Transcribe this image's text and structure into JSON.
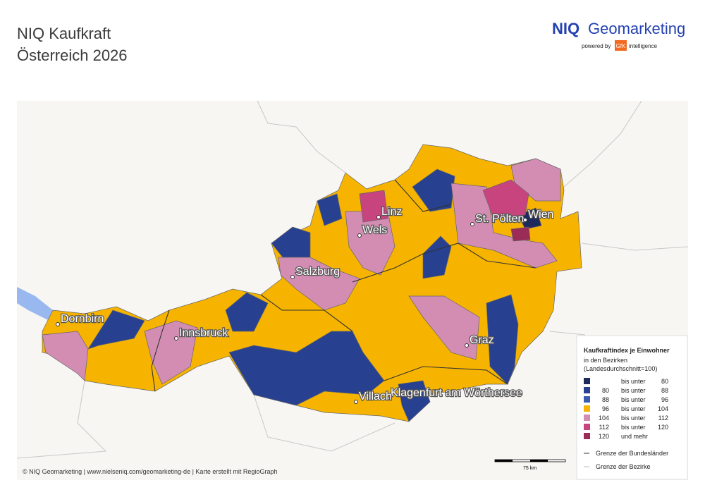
{
  "header": {
    "title_line1": "NIQ Kaufkraft",
    "title_line2": "Österreich 2026"
  },
  "logo": {
    "brand": "NIQ",
    "product": "Geomarketing",
    "powered_by": "powered by",
    "gfk": "GfK",
    "intelligence": "intelligence"
  },
  "map": {
    "cities": [
      {
        "label": "Linz"
      },
      {
        "label": "Wels"
      },
      {
        "label": "St. Pölten"
      },
      {
        "label": "Wien"
      },
      {
        "label": "Salzburg"
      },
      {
        "label": "Dornbirn"
      },
      {
        "label": "Innsbruck"
      },
      {
        "label": "Graz"
      },
      {
        "label": "Klagenfurt am Wörthersee"
      },
      {
        "label": "Villach"
      }
    ]
  },
  "legend": {
    "title": "Kaufkraftindex je Einwohner",
    "subtitle1": "in den Bezirken",
    "subtitle2": "(Landesdurchschnitt=100)",
    "classes": [
      {
        "to_label": "bis unter",
        "to": 80,
        "color": "#1e2a5c"
      },
      {
        "from": 80,
        "to_label": "bis unter",
        "to": 88,
        "color": "#27408f"
      },
      {
        "from": 88,
        "to_label": "bis unter",
        "to": 96,
        "color": "#3b5bb0"
      },
      {
        "from": 96,
        "to_label": "bis unter",
        "to": 104,
        "color": "#f6b400"
      },
      {
        "from": 104,
        "to_label": "bis unter",
        "to": 112,
        "color": "#d38db3"
      },
      {
        "from": 112,
        "to_label": "bis unter",
        "to": 120,
        "color": "#c8447e"
      },
      {
        "from": 120,
        "to_label": "und mehr",
        "color": "#9b2b57"
      }
    ],
    "borders": [
      "Grenze der Bundesländer",
      "Grenze der Bezirke"
    ]
  },
  "scale": "75 km",
  "footer": "© NIQ Geomarketing | www.nielseniq.com/geomarketing-de | Karte erstellt mit RegioGraph"
}
